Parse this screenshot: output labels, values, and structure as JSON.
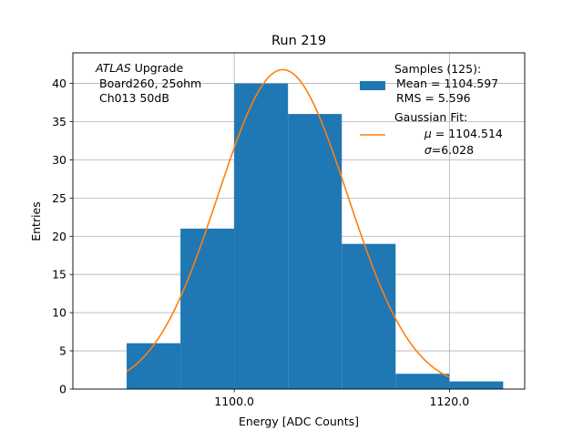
{
  "chart_data": {
    "type": "bar",
    "title": "Run 219",
    "xlabel": "Energy [ADC Counts]",
    "ylabel": "Entries",
    "xlim": [
      1085,
      1127
    ],
    "ylim": [
      0,
      44
    ],
    "grid": true,
    "legend_placement": "top-right",
    "x_ticks": [
      {
        "value": 1100,
        "label": "1100.0"
      },
      {
        "value": 1120,
        "label": "1120.0"
      }
    ],
    "y_ticks": [
      {
        "value": 0,
        "label": "0"
      },
      {
        "value": 5,
        "label": "5"
      },
      {
        "value": 10,
        "label": "10"
      },
      {
        "value": 15,
        "label": "15"
      },
      {
        "value": 20,
        "label": "20"
      },
      {
        "value": 25,
        "label": "25"
      },
      {
        "value": 30,
        "label": "30"
      },
      {
        "value": 35,
        "label": "35"
      },
      {
        "value": 40,
        "label": "40"
      }
    ],
    "bins": [
      {
        "x0": 1090,
        "x1": 1095,
        "value": 6
      },
      {
        "x0": 1095,
        "x1": 1100,
        "value": 21
      },
      {
        "x0": 1100,
        "x1": 1105,
        "value": 40
      },
      {
        "x0": 1105,
        "x1": 1110,
        "value": 36
      },
      {
        "x0": 1110,
        "x1": 1115,
        "value": 19
      },
      {
        "x0": 1115,
        "x1": 1120,
        "value": 2
      },
      {
        "x0": 1120,
        "x1": 1125,
        "value": 1
      }
    ],
    "fit": {
      "amplitude": 41.8,
      "mu": 1104.514,
      "sigma": 6.028,
      "x_start": 1090,
      "x_end": 1120
    },
    "series_colors": {
      "histogram": "#1f77b4",
      "fit": "#ff7f0e"
    },
    "annotation": {
      "atlas": "ATLAS",
      "upgrade": " Upgrade",
      "line2": "Board260, 25ohm",
      "line3": "Ch013 50dB"
    },
    "legend": {
      "samples": {
        "title": "Samples (125):",
        "mean": "Mean = 1104.597",
        "rms": "RMS = 5.596"
      },
      "fit": {
        "title": "Gaussian Fit:",
        "mu_symbol": "μ",
        "mu_text": " = 1104.514",
        "sigma_symbol": "σ",
        "sigma_text": "=6.028"
      }
    }
  }
}
